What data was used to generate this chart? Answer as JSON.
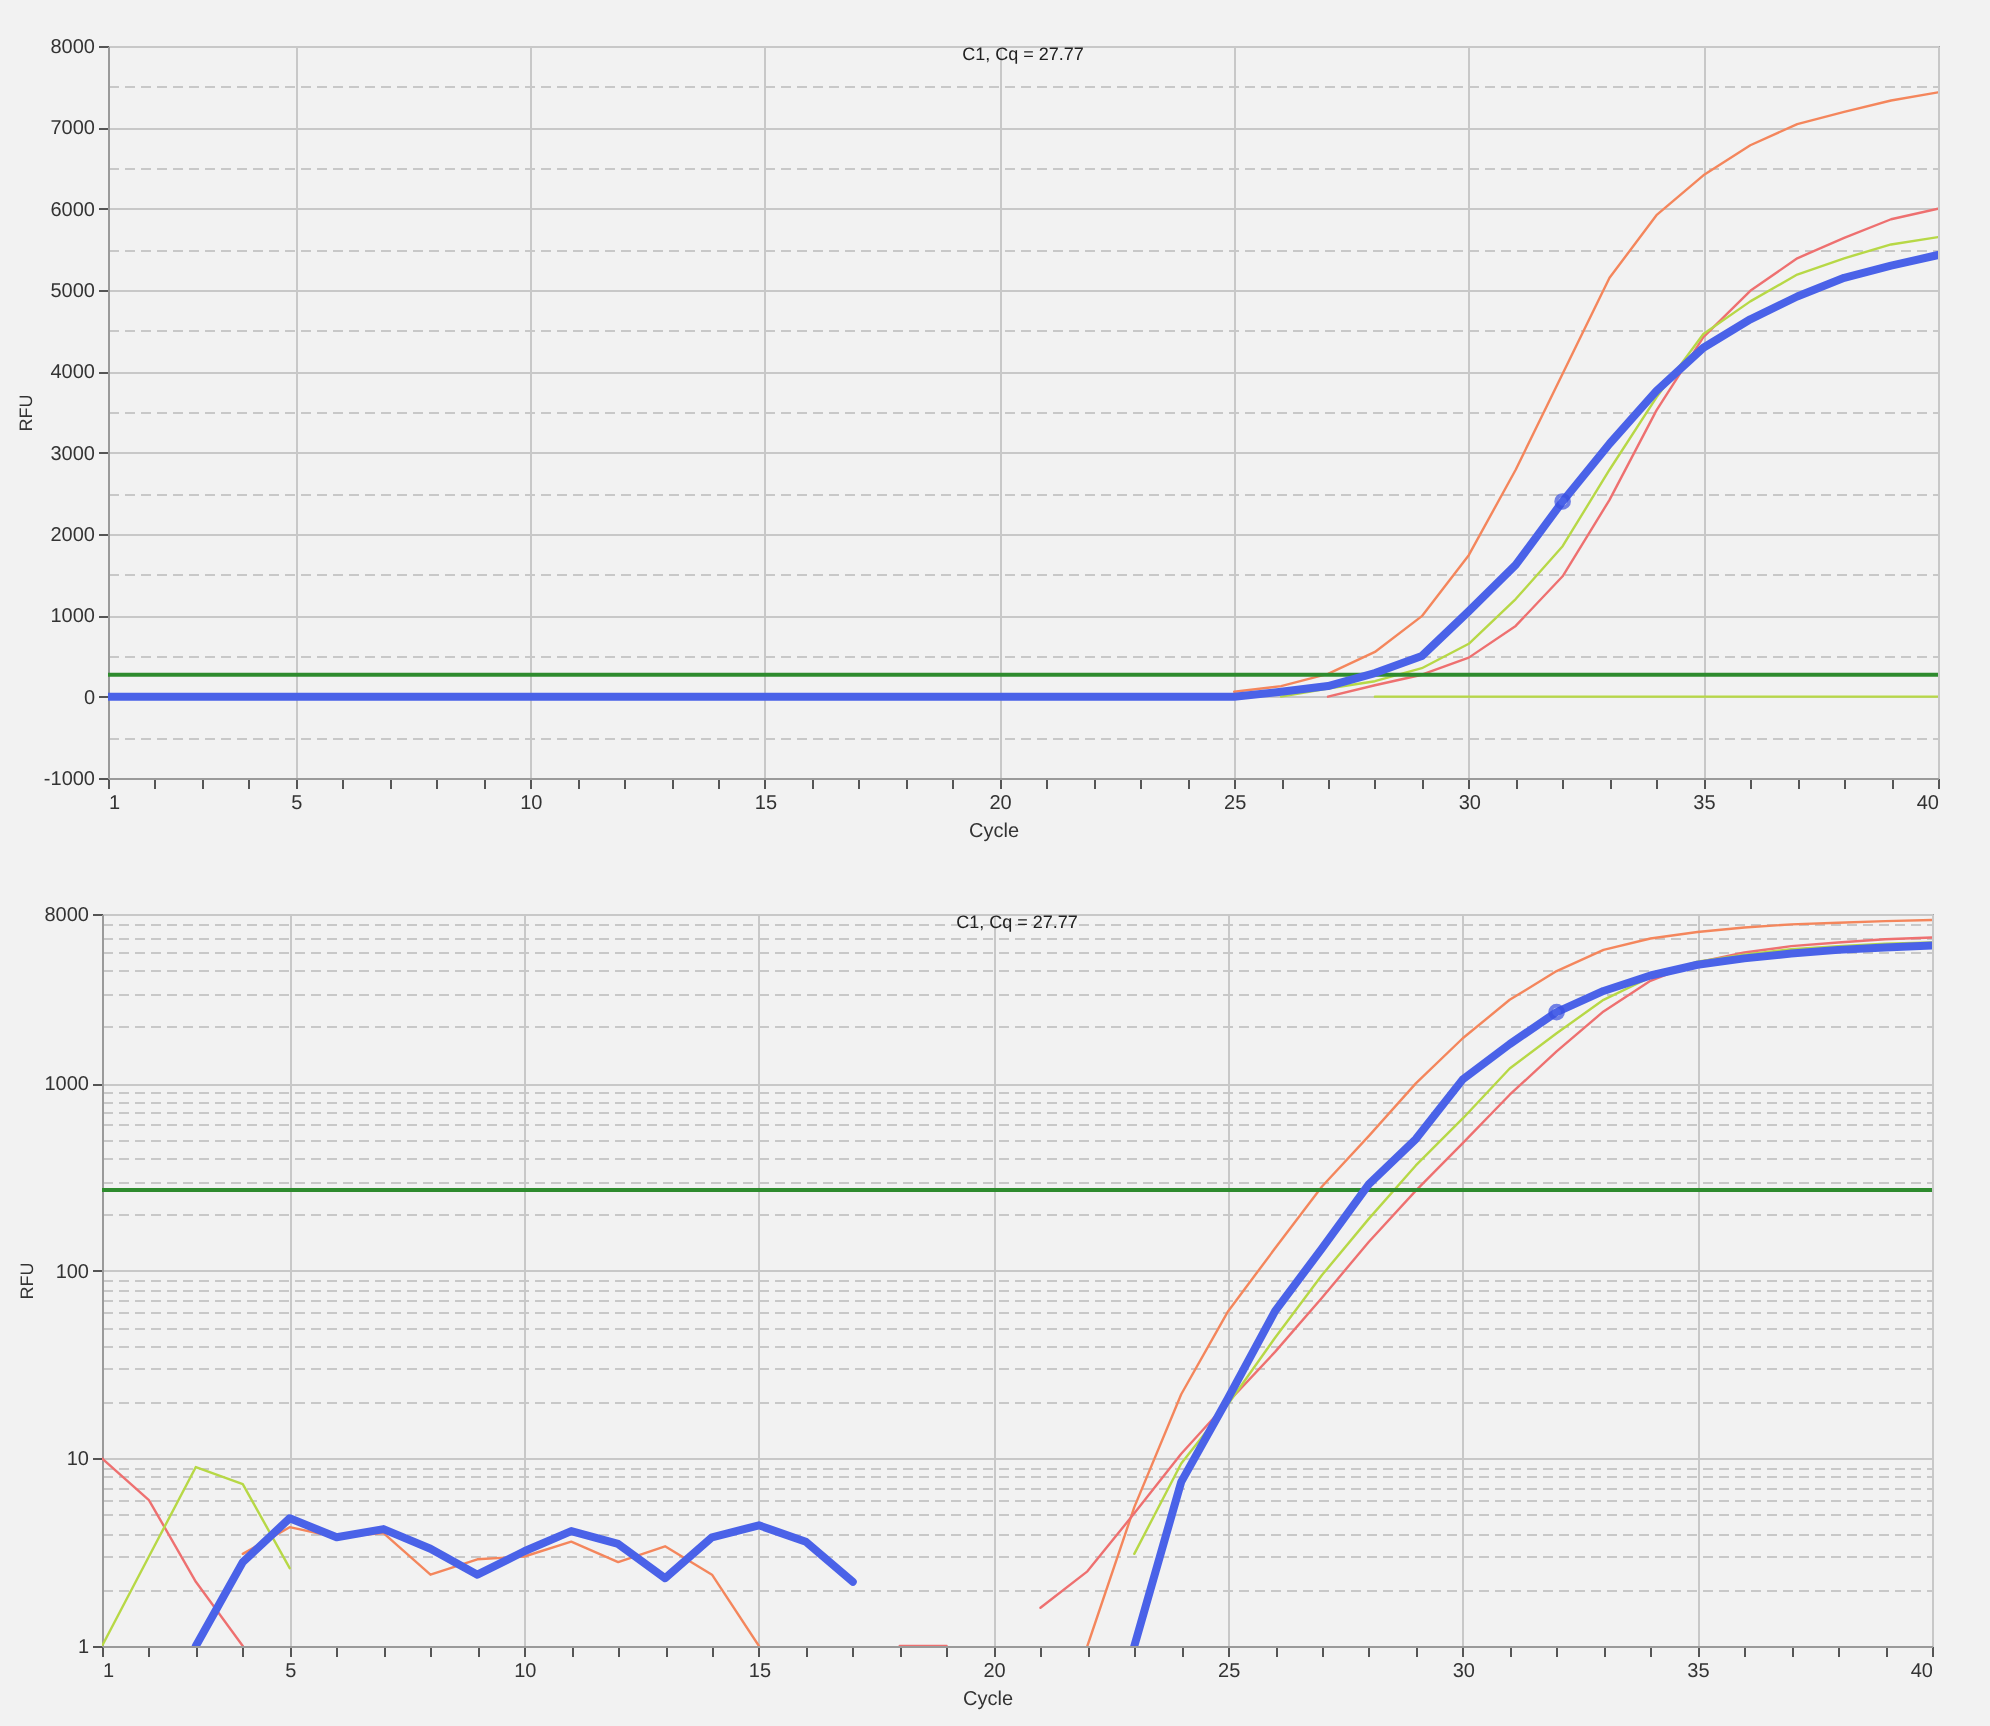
{
  "chart_data": [
    {
      "type": "line",
      "title": "C1, Cq = 27.77",
      "xlabel": "Cycle",
      "ylabel": "RFU",
      "grid": true,
      "x": [
        1,
        2,
        3,
        4,
        5,
        6,
        7,
        8,
        9,
        10,
        11,
        12,
        13,
        14,
        15,
        16,
        17,
        18,
        19,
        20,
        21,
        22,
        23,
        24,
        25,
        26,
        27,
        28,
        29,
        30,
        31,
        32,
        33,
        34,
        35,
        36,
        37,
        38,
        39,
        40
      ],
      "xlim": [
        1,
        40
      ],
      "xticks": [
        1,
        {
          "value": 2,
          "label": null
        },
        {
          "value": 3,
          "label": null
        },
        {
          "value": 4,
          "label": null
        },
        5,
        {
          "value": 6,
          "label": null
        },
        {
          "value": 7,
          "label": null
        },
        {
          "value": 8,
          "label": null
        },
        {
          "value": 9,
          "label": null
        },
        10,
        {
          "value": 11,
          "label": null
        },
        {
          "value": 12,
          "label": null
        },
        {
          "value": 13,
          "label": null
        },
        {
          "value": 14,
          "label": null
        },
        15,
        {
          "value": 16,
          "label": null
        },
        {
          "value": 17,
          "label": null
        },
        {
          "value": 18,
          "label": null
        },
        {
          "value": 19,
          "label": null
        },
        20,
        {
          "value": 21,
          "label": null
        },
        {
          "value": 22,
          "label": null
        },
        {
          "value": 23,
          "label": null
        },
        {
          "value": 24,
          "label": null
        },
        25,
        {
          "value": 26,
          "label": null
        },
        {
          "value": 27,
          "label": null
        },
        {
          "value": 28,
          "label": null
        },
        {
          "value": 29,
          "label": null
        },
        30,
        {
          "value": 31,
          "label": null
        },
        {
          "value": 32,
          "label": null
        },
        {
          "value": 33,
          "label": null
        },
        {
          "value": 34,
          "label": null
        },
        35,
        {
          "value": 36,
          "label": null
        },
        {
          "value": 37,
          "label": null
        },
        {
          "value": 38,
          "label": null
        },
        {
          "value": 39,
          "label": null
        },
        40
      ],
      "ylim": [
        -1000,
        8000
      ],
      "yticks": [
        -1000,
        {
          "value": -500,
          "label": null
        },
        0,
        {
          "value": 500,
          "label": null
        },
        1000,
        {
          "value": 1500,
          "label": null
        },
        2000,
        {
          "value": 2500,
          "label": null
        },
        3000,
        {
          "value": 3500,
          "label": null
        },
        4000,
        {
          "value": 4500,
          "label": null
        },
        5000,
        {
          "value": 5500,
          "label": null
        },
        6000,
        {
          "value": 6500,
          "label": null
        },
        7000,
        {
          "value": 7500,
          "label": null
        },
        8000
      ],
      "ref_lines": [
        {
          "axis": "y",
          "value": 270,
          "color": "#2e8b2e"
        }
      ],
      "series": [
        {
          "color": "#4a62e8",
          "values": [
            0,
            0,
            0,
            0,
            0,
            0,
            0,
            0,
            0,
            0,
            0,
            0,
            0,
            0,
            0,
            0,
            0,
            0,
            0,
            0,
            0,
            0,
            0,
            0,
            0,
            60,
            130,
            290,
            500,
            1050,
            1620,
            2400,
            3110,
            3760,
            4290,
            4640,
            4920,
            5150,
            5300,
            5430
          ]
        },
        {
          "color": "#b7d846",
          "values": [
            null,
            null,
            null,
            null,
            null,
            null,
            null,
            null,
            null,
            null,
            null,
            null,
            null,
            null,
            null,
            null,
            null,
            null,
            null,
            null,
            null,
            null,
            null,
            null,
            null,
            null,
            null,
            0,
            0,
            0,
            0,
            0,
            0,
            0,
            0,
            0,
            0,
            0,
            0,
            0
          ]
        },
        {
          "color": "#f4865c",
          "values": [
            null,
            null,
            null,
            null,
            null,
            null,
            null,
            null,
            null,
            null,
            null,
            null,
            null,
            null,
            null,
            null,
            null,
            null,
            null,
            null,
            null,
            null,
            null,
            null,
            60,
            130,
            280,
            550,
            990,
            1740,
            2790,
            3970,
            5150,
            5920,
            6410,
            6780,
            7040,
            7190,
            7330,
            7430
          ]
        },
        {
          "color": "#ee7070",
          "values": [
            null,
            null,
            null,
            null,
            null,
            null,
            null,
            null,
            null,
            null,
            null,
            null,
            null,
            null,
            null,
            null,
            null,
            null,
            null,
            null,
            null,
            null,
            null,
            null,
            null,
            null,
            0,
            140,
            270,
            480,
            870,
            1480,
            2420,
            3520,
            4420,
            4990,
            5390,
            5640,
            5870,
            6000
          ]
        },
        {
          "color": "#b7d846",
          "values": [
            null,
            null,
            null,
            null,
            null,
            null,
            null,
            null,
            null,
            null,
            null,
            null,
            null,
            null,
            null,
            null,
            null,
            null,
            null,
            null,
            null,
            null,
            null,
            null,
            null,
            0,
            100,
            190,
            350,
            650,
            1200,
            1850,
            2790,
            3680,
            4460,
            4860,
            5190,
            5390,
            5560,
            5650
          ]
        },
        {
          "type": "scatter",
          "marker": "circle",
          "color": "#3a50e0",
          "x": [
            32
          ],
          "values": [
            2400
          ]
        }
      ]
    },
    {
      "type": "line",
      "title": "C1, Cq = 27.77",
      "xlabel": "Cycle",
      "ylabel": "RFU",
      "grid": true,
      "log": true,
      "x": [
        1,
        2,
        3,
        4,
        5,
        6,
        7,
        8,
        9,
        10,
        11,
        12,
        13,
        14,
        15,
        16,
        17,
        18,
        19,
        20,
        21,
        22,
        23,
        24,
        25,
        26,
        27,
        28,
        29,
        30,
        31,
        32,
        33,
        34,
        35,
        36,
        37,
        38,
        39,
        40
      ],
      "xlim": [
        1,
        40
      ],
      "xticks": [
        1,
        {
          "value": 2,
          "label": null
        },
        {
          "value": 3,
          "label": null
        },
        {
          "value": 4,
          "label": null
        },
        5,
        {
          "value": 6,
          "label": null
        },
        {
          "value": 7,
          "label": null
        },
        {
          "value": 8,
          "label": null
        },
        {
          "value": 9,
          "label": null
        },
        10,
        {
          "value": 11,
          "label": null
        },
        {
          "value": 12,
          "label": null
        },
        {
          "value": 13,
          "label": null
        },
        {
          "value": 14,
          "label": null
        },
        15,
        {
          "value": 16,
          "label": null
        },
        {
          "value": 17,
          "label": null
        },
        {
          "value": 18,
          "label": null
        },
        {
          "value": 19,
          "label": null
        },
        20,
        {
          "value": 21,
          "label": null
        },
        {
          "value": 22,
          "label": null
        },
        {
          "value": 23,
          "label": null
        },
        {
          "value": 24,
          "label": null
        },
        25,
        {
          "value": 26,
          "label": null
        },
        {
          "value": 27,
          "label": null
        },
        {
          "value": 28,
          "label": null
        },
        {
          "value": 29,
          "label": null
        },
        30,
        {
          "value": 31,
          "label": null
        },
        {
          "value": 32,
          "label": null
        },
        {
          "value": 33,
          "label": null
        },
        {
          "value": 34,
          "label": null
        },
        35,
        {
          "value": 36,
          "label": null
        },
        {
          "value": 37,
          "label": null
        },
        {
          "value": 38,
          "label": null
        },
        {
          "value": 39,
          "label": null
        },
        40
      ],
      "ylim": [
        1,
        8000
      ],
      "yticks": [
        1,
        {
          "value": 2,
          "label": null
        },
        {
          "value": 3,
          "label": null
        },
        {
          "value": 4,
          "label": null
        },
        {
          "value": 5,
          "label": null
        },
        {
          "value": 6,
          "label": null
        },
        {
          "value": 7,
          "label": null
        },
        {
          "value": 8,
          "label": null
        },
        {
          "value": 9,
          "label": null
        },
        10,
        {
          "value": 20,
          "label": null
        },
        {
          "value": 30,
          "label": null
        },
        {
          "value": 40,
          "label": null
        },
        {
          "value": 50,
          "label": null
        },
        {
          "value": 60,
          "label": null
        },
        {
          "value": 70,
          "label": null
        },
        {
          "value": 80,
          "label": null
        },
        {
          "value": 90,
          "label": null
        },
        100,
        {
          "value": 200,
          "label": null
        },
        {
          "value": 300,
          "label": null
        },
        {
          "value": 400,
          "label": null
        },
        {
          "value": 500,
          "label": null
        },
        {
          "value": 600,
          "label": null
        },
        {
          "value": 700,
          "label": null
        },
        {
          "value": 800,
          "label": null
        },
        {
          "value": 900,
          "label": null
        },
        1000,
        {
          "value": 2000,
          "label": null
        },
        {
          "value": 3000,
          "label": null
        },
        {
          "value": 4000,
          "label": null
        },
        {
          "value": 5000,
          "label": null
        },
        {
          "value": 6000,
          "label": null
        },
        {
          "value": 7000,
          "label": null
        },
        8000
      ],
      "ref_lines": [
        {
          "axis": "y",
          "value": 270,
          "color": "#2e8b2e"
        }
      ],
      "series": [
        {
          "color": "#4a62e8",
          "values": [
            null,
            null,
            1,
            2.8,
            4.8,
            3.8,
            4.2,
            3.3,
            2.4,
            3.2,
            4.1,
            3.5,
            2.3,
            3.8,
            4.4,
            3.6,
            2.2,
            null,
            null,
            null,
            null,
            null,
            1,
            7.5,
            21,
            61,
            132,
            290,
            505,
            1050,
            1620,
            2400,
            3110,
            3760,
            4290,
            4640,
            4920,
            5150,
            5300,
            5430
          ]
        },
        {
          "color": "#f4865c",
          "values": [
            null,
            null,
            null,
            3.1,
            4.3,
            3.8,
            4.0,
            2.4,
            2.9,
            3.0,
            3.6,
            2.8,
            3.4,
            2.4,
            1,
            null,
            null,
            null,
            null,
            null,
            null,
            1,
            5.5,
            22,
            61,
            132,
            282,
            525,
            1000,
            1740,
            2790,
            3970,
            5150,
            5920,
            6410,
            6780,
            7040,
            7190,
            7330,
            7430
          ]
        },
        {
          "color": "#ee7070",
          "values": [
            10,
            6,
            2.2,
            1,
            null,
            null,
            null,
            null,
            null,
            null,
            null,
            null,
            null,
            null,
            null,
            null,
            null,
            1,
            1,
            null,
            1.6,
            2.5,
            5.1,
            10.6,
            20,
            37,
            72,
            143,
            268,
            480,
            870,
            1480,
            2420,
            3520,
            4420,
            4990,
            5390,
            5640,
            5870,
            6000
          ]
        },
        {
          "color": "#b7d846",
          "values": [
            1,
            3,
            9,
            7.3,
            2.6,
            null,
            null,
            null,
            null,
            null,
            null,
            null,
            null,
            null,
            null,
            null,
            null,
            null,
            null,
            null,
            null,
            null,
            3.1,
            9.4,
            19.5,
            44,
            95,
            190,
            365,
            650,
            1200,
            1850,
            2790,
            3680,
            4460,
            4860,
            5190,
            5390,
            5560,
            5650
          ]
        },
        {
          "type": "scatter",
          "marker": "circle",
          "color": "#3a50e0",
          "x": [
            32
          ],
          "values": [
            2400
          ]
        }
      ]
    }
  ]
}
